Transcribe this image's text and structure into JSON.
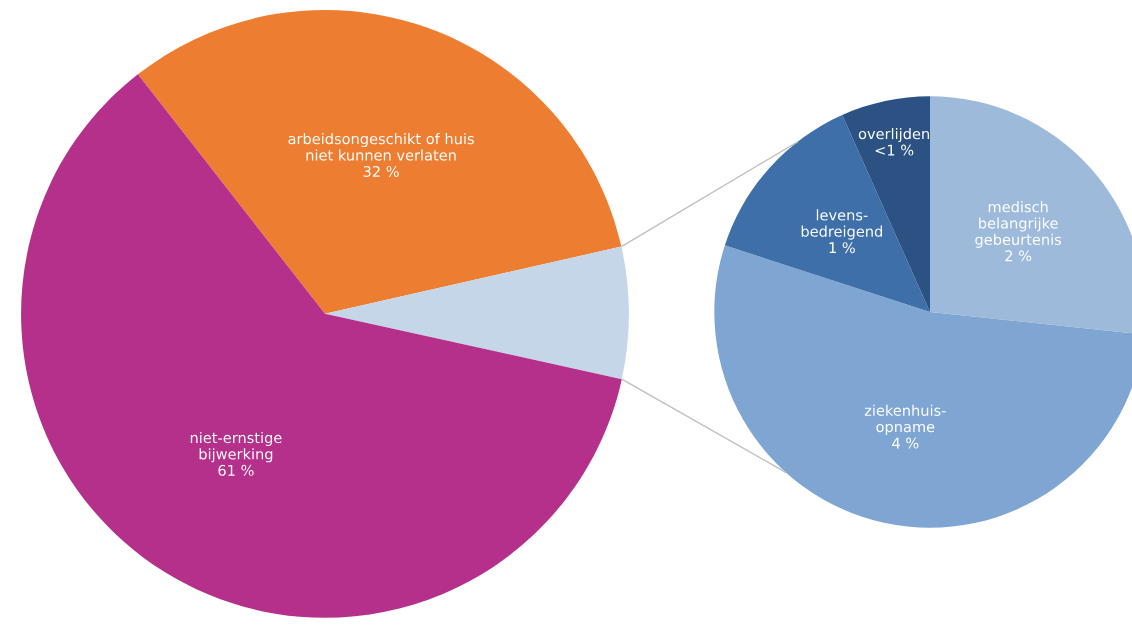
{
  "chart_data": [
    {
      "type": "pie",
      "categories": [
        "arbeidsongeschikt of huis\nniet kunnen verlaten",
        null,
        "niet-ernstige\nbijwerking"
      ],
      "values": [
        32,
        7,
        61
      ],
      "value_labels": [
        "32 %",
        null,
        "61 %"
      ],
      "colors": [
        "#ec7d31",
        "#c5d6e8",
        "#b5308a"
      ]
    },
    {
      "type": "pie",
      "categories": [
        "medisch\nbelangrijke\ngebeurtenis",
        "ziekenhuis-\nopname",
        "levens-\nbedreigend",
        "overlijden"
      ],
      "values": [
        2,
        4,
        1,
        0.5
      ],
      "value_labels": [
        "2 %",
        "4 %",
        "1 %",
        "<1 %"
      ],
      "colors": [
        "#9dbada",
        "#7fa6d3",
        "#3e6fa8",
        "#2b5282"
      ]
    }
  ]
}
